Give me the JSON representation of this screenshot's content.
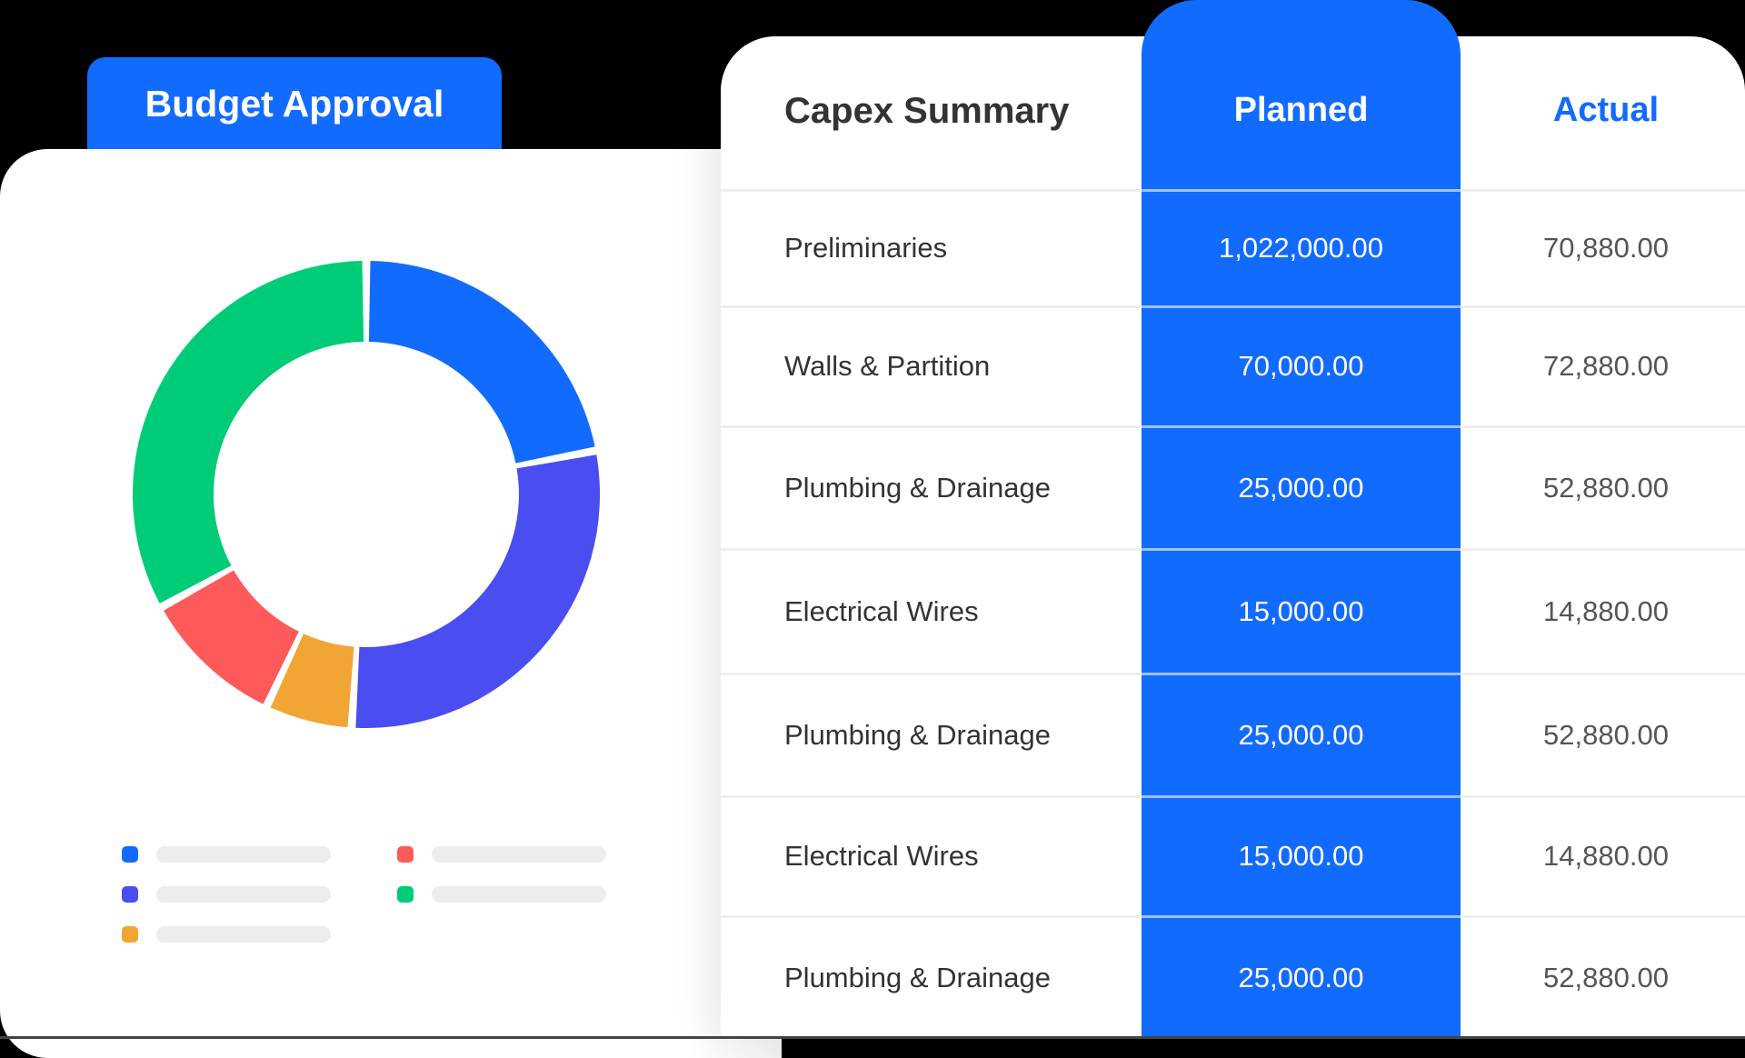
{
  "budget_tab": {
    "label": "Budget Approval"
  },
  "table": {
    "title": "Capex Summary",
    "columns": [
      "Planned",
      "Actual"
    ],
    "rows": [
      {
        "name": "Preliminaries",
        "planned": "1,022,000.00",
        "actual": "70,880.00"
      },
      {
        "name": "Walls & Partition",
        "planned": "70,000.00",
        "actual": "72,880.00"
      },
      {
        "name": "Plumbing & Drainage",
        "planned": "25,000.00",
        "actual": "52,880.00"
      },
      {
        "name": "Electrical Wires",
        "planned": "15,000.00",
        "actual": "14,880.00"
      },
      {
        "name": "Plumbing & Drainage",
        "planned": "25,000.00",
        "actual": "52,880.00"
      },
      {
        "name": "Electrical Wires",
        "planned": "15,000.00",
        "actual": "14,880.00"
      },
      {
        "name": "Plumbing & Drainage",
        "planned": "25,000.00",
        "actual": "52,880.00"
      }
    ]
  },
  "colors": {
    "accent": "#126bff",
    "blue": "#126bff",
    "indigo": "#4a4df0",
    "orange": "#f0a535",
    "red": "#ff5a5a",
    "green": "#00cc78"
  },
  "chart_data": {
    "type": "pie",
    "variant": "donut",
    "title": "",
    "categories": [
      "Blue",
      "Indigo",
      "Orange",
      "Red",
      "Green"
    ],
    "values": [
      22,
      29,
      6,
      10,
      33
    ],
    "colors": [
      "#126bff",
      "#4a4df0",
      "#f0a535",
      "#ff5a5a",
      "#00cc78"
    ],
    "legend": {
      "position": "bottom",
      "labels_placeholder": true
    }
  }
}
